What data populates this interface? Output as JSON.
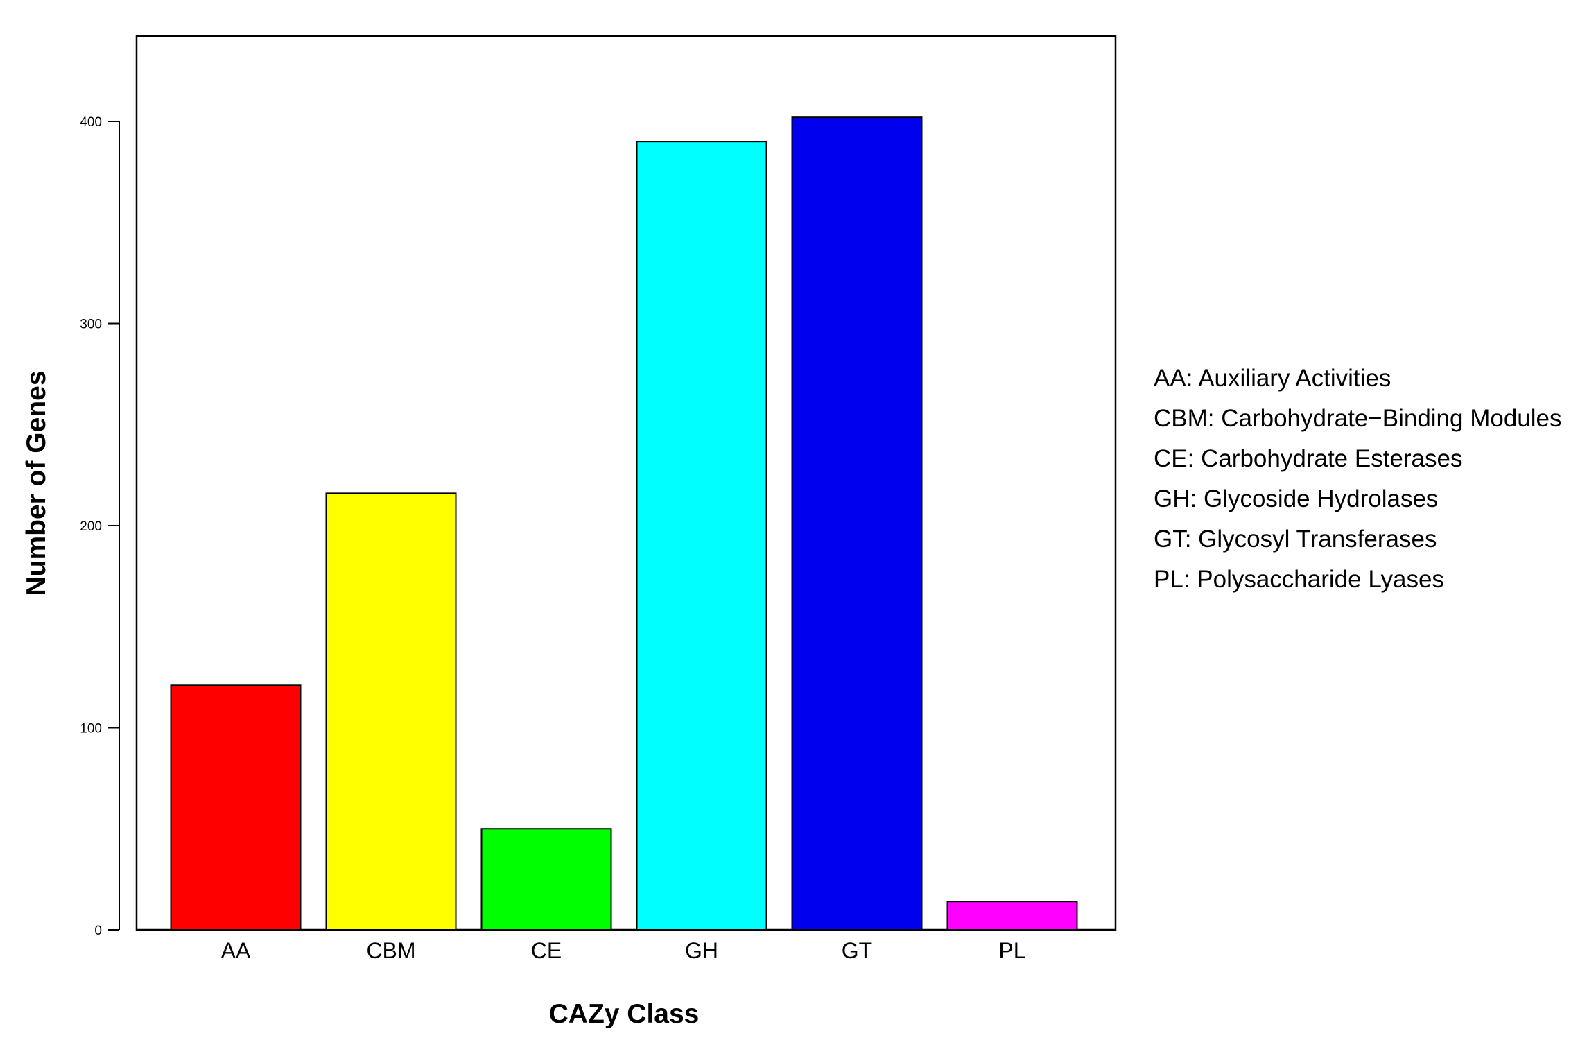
{
  "chart_data": {
    "type": "bar",
    "title": "",
    "xlabel": "CAZy Class",
    "ylabel": "Number of Genes",
    "categories": [
      "AA",
      "CBM",
      "CE",
      "GH",
      "GT",
      "PL"
    ],
    "values": [
      121,
      216,
      50,
      390,
      402,
      14
    ],
    "colors": [
      "#ff0000",
      "#ffff00",
      "#00ff00",
      "#00ffff",
      "#0000ee",
      "#ff00ff"
    ],
    "ylim": [
      0,
      400
    ],
    "yticks": [
      0,
      100,
      200,
      300,
      400
    ],
    "grid": false,
    "legend_position": "right",
    "legend": [
      "AA: Auxiliary Activities",
      "CBM: Carbohydrate−Binding Modules",
      "CE: Carbohydrate Esterases",
      "GH: Glycoside Hydrolases",
      "GT: Glycosyl Transferases",
      "PL: Polysaccharide Lyases"
    ]
  }
}
